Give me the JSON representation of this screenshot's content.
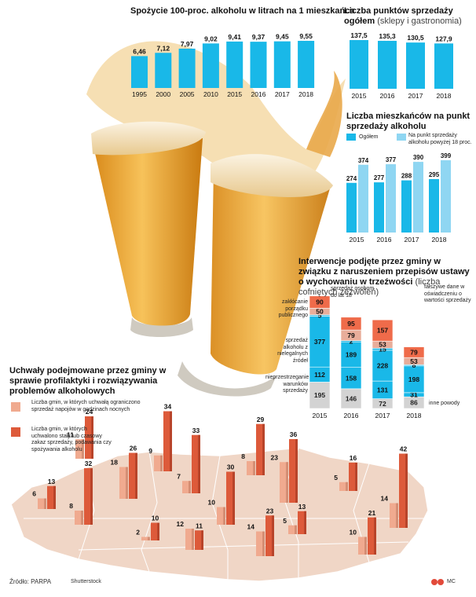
{
  "chart_data": [
    {
      "id": "consumption",
      "type": "bar",
      "title": "Spożycie 100-proc. alkoholu w litrach na 1 mieszkańca",
      "categories": [
        "1995",
        "2000",
        "2005",
        "2010",
        "2015",
        "2016",
        "2017",
        "2018"
      ],
      "values": [
        6.46,
        7.12,
        7.97,
        9.02,
        9.41,
        9.37,
        9.45,
        9.55
      ],
      "labels": [
        "6,46",
        "7,12",
        "7,97",
        "9,02",
        "9,41",
        "9,37",
        "9,45",
        "9,55"
      ],
      "colors": {
        "bar": "#19b8e8"
      }
    },
    {
      "id": "outlets",
      "type": "bar",
      "title": "Liczba punktów sprzedaży ogółem",
      "subtitle": "(sklepy i gastronomia)",
      "categories": [
        "2015",
        "2016",
        "2017",
        "2018"
      ],
      "values": [
        137.5,
        135.3,
        130.5,
        127.9
      ],
      "labels": [
        "137,5",
        "135,3",
        "130,5",
        "127,9"
      ],
      "colors": {
        "bar": "#19b8e8"
      }
    },
    {
      "id": "residents",
      "type": "bar",
      "title": "Liczba mieszkańców na punkt sprzedaży alkoholu",
      "legend": [
        "Ogółem",
        "Na punkt sprzedaży alkoholu powyżej 18 proc."
      ],
      "categories": [
        "2015",
        "2016",
        "2017",
        "2018"
      ],
      "series": [
        {
          "name": "Ogółem",
          "values": [
            274,
            277,
            288,
            295
          ],
          "color": "#19b8e8"
        },
        {
          "name": "Na punkt sprzedaży alkoholu powyżej 18 proc.",
          "values": [
            374,
            377,
            390,
            399
          ],
          "color": "#8fd6f2"
        }
      ]
    },
    {
      "id": "interventions",
      "type": "bar",
      "stacked": true,
      "title": "Interwencje podjęte przez gminy w związku z naruszeniem przepisów ustawy o wychowaniu w trzeźwości",
      "subtitle": "(liczba cofniętych zezwoleń)",
      "categories": [
        "2015",
        "2016",
        "2017",
        "2018"
      ],
      "series": [
        {
          "name": "inne powody",
          "values": [
            195,
            146,
            72,
            86
          ],
          "color": "#d3d3d3"
        },
        {
          "name": "nieprzestrzeganie warunków sprzedaży",
          "values": [
            112,
            158,
            131,
            31
          ],
          "color": "#19b8e8"
        },
        {
          "name": "sprzedaż alkoholu z nielegalnych źródeł",
          "values": [
            377,
            189,
            228,
            198
          ],
          "color": "#19b8e8"
        },
        {
          "name": "zakłócanie porządku publicznego",
          "values": [
            5,
            2,
            15,
            8
          ],
          "color": "#19b8e8"
        },
        {
          "name": "fałszywe dane w oświadczeniu o wartości sprzedaży",
          "values": [
            50,
            79,
            53,
            53
          ],
          "color": "#e8ad9a"
        },
        {
          "name": "sprzedaż osobom do lat 18",
          "values": [
            90,
            95,
            157,
            79
          ],
          "color": "#ef6b4a"
        }
      ],
      "annotations": {
        "zaklocanie": "zakłócanie porządku publicznego",
        "sprzedaz_18": "sprzedaż osobom do lat 18",
        "falszywe": "fałszywe dane w oświadczeniu o wartości sprzedaży",
        "nielegalne": "sprzedaż alkoholu z nielegalnych źródeł",
        "warunki": "nieprzestrzeganie warunków sprzedaży",
        "inne": "inne powody"
      }
    },
    {
      "id": "map",
      "type": "bar",
      "title": "Uchwały podejmowane przez gminy w sprawie profilaktyki i rozwiązywania problemów alkoholowych",
      "legend": [
        "Liczba gmin, w których uchwałą ograniczono sprzedaż napojów w godzinach nocnych",
        "Liczba gmin, w których uchwalono stały lub czasowy zakaz sprzedaży, podawania czy spożywania alkoholu"
      ],
      "series": [
        {
          "name": "Liczba gmin, w których uchwałą ograniczono sprzedaż napojów w godzinach nocnych",
          "values": [
            6,
            8,
            18,
            9,
            7,
            10,
            8,
            23,
            14,
            5,
            5,
            14,
            11,
            2,
            12,
            10
          ],
          "color": "#f0aa8f"
        },
        {
          "name": "Liczba gmin, w których uchwalono stały lub czasowy zakaz sprzedaży, podawania czy spożywania alkoholu",
          "values": [
            13,
            32,
            26,
            34,
            33,
            30,
            29,
            36,
            23,
            13,
            16,
            42,
            24,
            10,
            11,
            21
          ],
          "color": "#dd5a3a"
        }
      ]
    }
  ],
  "footer": {
    "source": "Źródło: PARPA",
    "photo": "Shutterstock",
    "author": "MC"
  }
}
